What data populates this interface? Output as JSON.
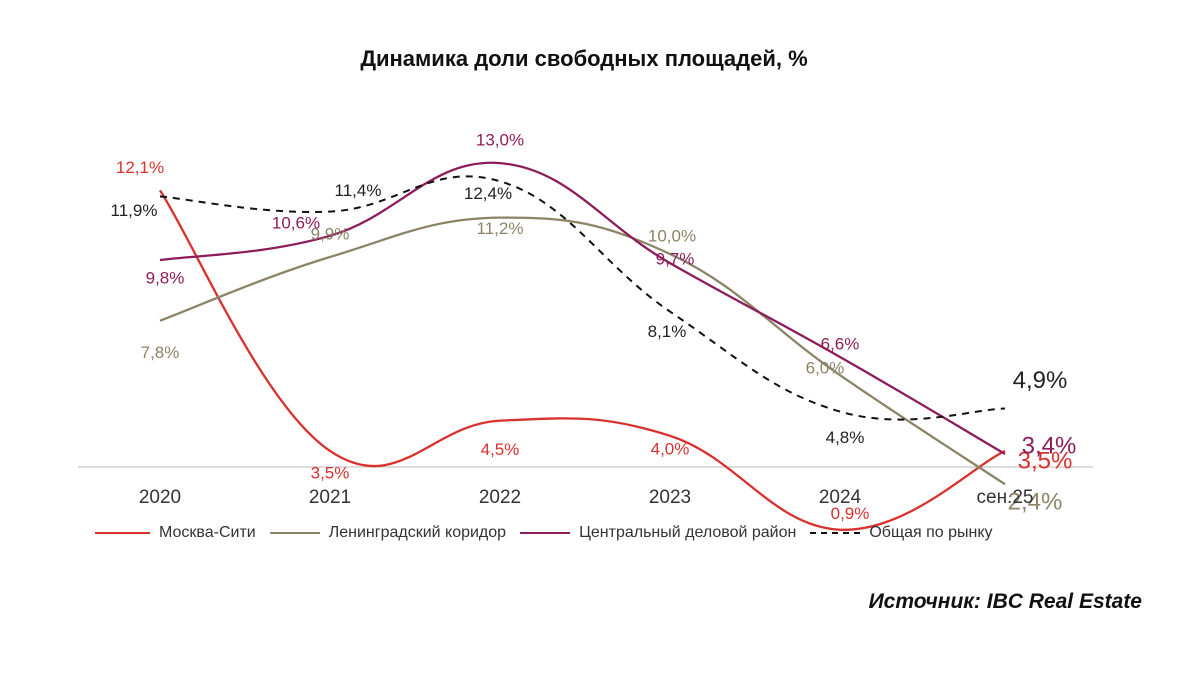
{
  "chart_data": {
    "type": "line",
    "title": "Динамика доли свободных площадей, %",
    "categories": [
      "2020",
      "2021",
      "2022",
      "2023",
      "2024",
      "сен.25"
    ],
    "ylabel": "",
    "xlabel": "",
    "ylim": [
      0,
      14
    ],
    "series": [
      {
        "name": "Москва-Сити",
        "color": "#d9312e",
        "dash": false,
        "values": [
          12.1,
          3.5,
          4.5,
          4.0,
          0.9,
          3.5
        ],
        "labels": [
          "12,1%",
          "3,5%",
          "4,5%",
          "4,0%",
          "0,9%",
          "3,5%"
        ]
      },
      {
        "name": "Ленинградский коридор",
        "color": "#8c8466",
        "dash": false,
        "values": [
          7.8,
          9.9,
          11.2,
          10.0,
          6.0,
          2.4
        ],
        "labels": [
          "7,8%",
          "9,9%",
          "11,2%",
          "10,0%",
          "6,0%",
          "2,4%"
        ]
      },
      {
        "name": "Центральный деловой район",
        "color": "#8c1d5a",
        "dash": false,
        "values": [
          9.8,
          10.6,
          13.0,
          9.7,
          6.6,
          3.4
        ],
        "labels": [
          "9,8%",
          "10,6%",
          "13,0%",
          "9,7%",
          "6,6%",
          "3,4%"
        ]
      },
      {
        "name": "Общая по рынку",
        "color": "#111111",
        "dash": true,
        "values": [
          11.9,
          11.4,
          12.4,
          8.1,
          4.8,
          4.9
        ],
        "labels": [
          "11,9%",
          "11,4%",
          "12,4%",
          "8,1%",
          "4,8%",
          "4,9%"
        ]
      }
    ]
  },
  "source": "Источник: IBC Real Estate"
}
